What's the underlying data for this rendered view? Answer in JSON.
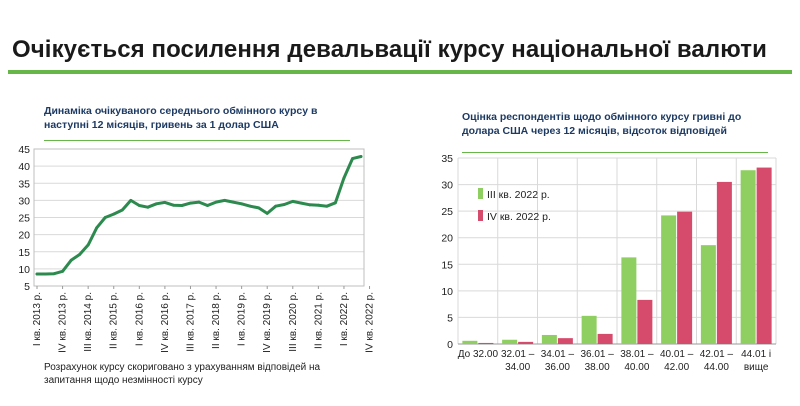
{
  "page": {
    "title": "Очікується посилення девальвації курсу національної валюти",
    "accent_color": "#67b649"
  },
  "chart_data": [
    {
      "type": "line",
      "title": "Динаміка очікуваного середнього обмінного курсу в наступні 12 місяців, гривень за 1 долар США",
      "footnote": "Розрахунок курсу скориговано з урахуванням відповідей на запитання щодо незмінності курсу",
      "color": "#2d8a4e",
      "ylim": [
        5,
        45
      ],
      "yticks": [
        5,
        10,
        15,
        20,
        25,
        30,
        35,
        40,
        45
      ],
      "xtick_labels": [
        "I кв. 2013 р.",
        "IV кв. 2013 р.",
        "III кв. 2014 р.",
        "II кв. 2015 р.",
        "I кв. 2016 р.",
        "IV кв. 2016 р.",
        "III кв. 2017 р.",
        "II кв. 2018 р.",
        "I кв. 2019 р.",
        "IV кв. 2019 р.",
        "III кв. 2020 р.",
        "II кв. 2021 р.",
        "I кв. 2022 р.",
        "IV кв. 2022 р."
      ],
      "values": [
        8.5,
        8.5,
        8.6,
        9.3,
        12.5,
        14.2,
        17.0,
        22.0,
        25.0,
        26.0,
        27.2,
        30.0,
        28.5,
        28.0,
        29.0,
        29.4,
        28.6,
        28.5,
        29.2,
        29.5,
        28.5,
        29.5,
        30.0,
        29.5,
        29.0,
        28.3,
        27.8,
        26.2,
        28.3,
        28.8,
        29.7,
        29.2,
        28.7,
        28.6,
        28.3,
        29.3,
        36.5,
        42.2,
        42.8
      ]
    },
    {
      "type": "bar",
      "title": "Оцінка респондентів щодо обмінного курсу гривні до долара США через 12 місяців, відсоток відповідей",
      "categories": [
        [
          "До 32.00"
        ],
        [
          "32.01 –",
          "34.00"
        ],
        [
          "34.01 –",
          "36.00"
        ],
        [
          "36.01 –",
          "38.00"
        ],
        [
          "38.01 –",
          "40.00"
        ],
        [
          "40.01 –",
          "42.00"
        ],
        [
          "42.01 –",
          "44.00"
        ],
        [
          "44.01 і",
          "вище"
        ]
      ],
      "ylim": [
        0,
        35
      ],
      "yticks": [
        0,
        5,
        10,
        15,
        20,
        25,
        30,
        35
      ],
      "series": [
        {
          "name": "III кв. 2022 р.",
          "color": "#8fcf62",
          "values": [
            0.6,
            0.8,
            1.7,
            5.3,
            16.3,
            24.2,
            18.6,
            32.7
          ]
        },
        {
          "name": "IV кв. 2022 р.",
          "color": "#d64a6b",
          "values": [
            0.2,
            0.4,
            1.1,
            1.9,
            8.3,
            24.9,
            30.5,
            33.2
          ]
        }
      ]
    }
  ]
}
